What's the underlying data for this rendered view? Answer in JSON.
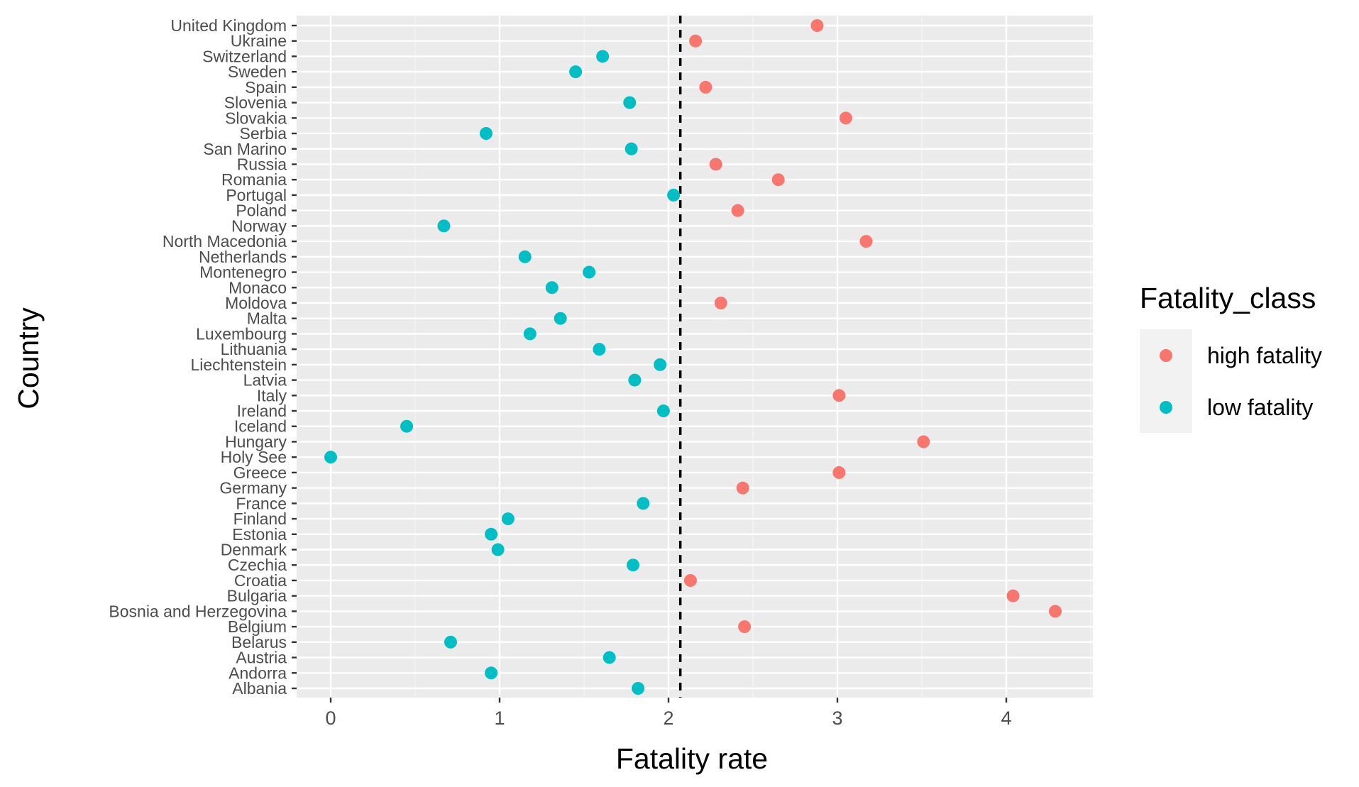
{
  "colors": {
    "panel": "#EBEBEB",
    "grid_major": "#FFFFFF",
    "grid_minor": "#F5F5F5",
    "tick": "#333333",
    "tick_label": "#4D4D4D",
    "high fatality": "#F8766D",
    "low fatality": "#00BFC4",
    "reference_line": "#000000"
  },
  "chart_data": {
    "type": "scatter",
    "xlabel": "Fatality rate",
    "ylabel": "Country",
    "xlim": [
      -0.2,
      4.5
    ],
    "x_ticks": [
      0,
      1,
      2,
      3,
      4
    ],
    "grid": true,
    "reference_line": {
      "x": 2.07,
      "style": "dashed"
    },
    "legend": {
      "title": "Fatality_class",
      "position": "right",
      "entries": [
        "high fatality",
        "low fatality"
      ]
    },
    "points": [
      {
        "country": "Albania",
        "x": 1.82,
        "class": "low fatality"
      },
      {
        "country": "Andorra",
        "x": 0.95,
        "class": "low fatality"
      },
      {
        "country": "Austria",
        "x": 1.65,
        "class": "low fatality"
      },
      {
        "country": "Belarus",
        "x": 0.71,
        "class": "low fatality"
      },
      {
        "country": "Belgium",
        "x": 2.45,
        "class": "high fatality"
      },
      {
        "country": "Bosnia and Herzegovina",
        "x": 4.29,
        "class": "high fatality"
      },
      {
        "country": "Bulgaria",
        "x": 4.04,
        "class": "high fatality"
      },
      {
        "country": "Croatia",
        "x": 2.13,
        "class": "high fatality"
      },
      {
        "country": "Czechia",
        "x": 1.79,
        "class": "low fatality"
      },
      {
        "country": "Denmark",
        "x": 0.99,
        "class": "low fatality"
      },
      {
        "country": "Estonia",
        "x": 0.95,
        "class": "low fatality"
      },
      {
        "country": "Finland",
        "x": 1.05,
        "class": "low fatality"
      },
      {
        "country": "France",
        "x": 1.85,
        "class": "low fatality"
      },
      {
        "country": "Germany",
        "x": 2.44,
        "class": "high fatality"
      },
      {
        "country": "Greece",
        "x": 3.01,
        "class": "high fatality"
      },
      {
        "country": "Holy See",
        "x": 0.0,
        "class": "low fatality"
      },
      {
        "country": "Hungary",
        "x": 3.51,
        "class": "high fatality"
      },
      {
        "country": "Iceland",
        "x": 0.45,
        "class": "low fatality"
      },
      {
        "country": "Ireland",
        "x": 1.97,
        "class": "low fatality"
      },
      {
        "country": "Italy",
        "x": 3.01,
        "class": "high fatality"
      },
      {
        "country": "Latvia",
        "x": 1.8,
        "class": "low fatality"
      },
      {
        "country": "Liechtenstein",
        "x": 1.95,
        "class": "low fatality"
      },
      {
        "country": "Lithuania",
        "x": 1.59,
        "class": "low fatality"
      },
      {
        "country": "Luxembourg",
        "x": 1.18,
        "class": "low fatality"
      },
      {
        "country": "Malta",
        "x": 1.36,
        "class": "low fatality"
      },
      {
        "country": "Moldova",
        "x": 2.31,
        "class": "high fatality"
      },
      {
        "country": "Monaco",
        "x": 1.31,
        "class": "low fatality"
      },
      {
        "country": "Montenegro",
        "x": 1.53,
        "class": "low fatality"
      },
      {
        "country": "Netherlands",
        "x": 1.15,
        "class": "low fatality"
      },
      {
        "country": "North Macedonia",
        "x": 3.17,
        "class": "high fatality"
      },
      {
        "country": "Norway",
        "x": 0.67,
        "class": "low fatality"
      },
      {
        "country": "Poland",
        "x": 2.41,
        "class": "high fatality"
      },
      {
        "country": "Portugal",
        "x": 2.03,
        "class": "low fatality"
      },
      {
        "country": "Romania",
        "x": 2.65,
        "class": "high fatality"
      },
      {
        "country": "Russia",
        "x": 2.28,
        "class": "high fatality"
      },
      {
        "country": "San Marino",
        "x": 1.78,
        "class": "low fatality"
      },
      {
        "country": "Serbia",
        "x": 0.92,
        "class": "low fatality"
      },
      {
        "country": "Slovakia",
        "x": 3.05,
        "class": "high fatality"
      },
      {
        "country": "Slovenia",
        "x": 1.77,
        "class": "low fatality"
      },
      {
        "country": "Spain",
        "x": 2.22,
        "class": "high fatality"
      },
      {
        "country": "Sweden",
        "x": 1.45,
        "class": "low fatality"
      },
      {
        "country": "Switzerland",
        "x": 1.61,
        "class": "low fatality"
      },
      {
        "country": "Ukraine",
        "x": 2.16,
        "class": "high fatality"
      },
      {
        "country": "United Kingdom",
        "x": 2.88,
        "class": "high fatality"
      }
    ]
  }
}
